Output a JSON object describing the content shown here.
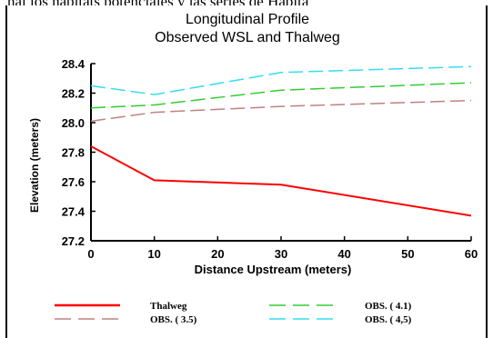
{
  "top_caption": "nal los hábitats potenciales y las series de Hábita",
  "chart_data": {
    "type": "line",
    "title": "Longitudinal Profile",
    "subtitle": "Observed WSL and Thalweg",
    "xlabel": "Distance Upstream (meters)",
    "ylabel": "Elevation (meters)",
    "xlim": [
      0,
      60
    ],
    "ylim": [
      27.2,
      28.4
    ],
    "x_ticks": [
      0,
      10,
      20,
      30,
      40,
      50,
      60
    ],
    "y_ticks": [
      27.2,
      27.4,
      27.6,
      27.8,
      28.0,
      28.2,
      28.4
    ],
    "grid": false,
    "legend_position": "bottom",
    "series": [
      {
        "name": "Thalweg",
        "color": "#ff0000",
        "dash": "solid",
        "x": [
          0,
          10,
          30,
          60
        ],
        "values": [
          27.84,
          27.61,
          27.58,
          27.37
        ]
      },
      {
        "name": "OBS. ( 3.5)",
        "color": "#c08080",
        "dash": "dashed",
        "x": [
          0,
          10,
          30,
          60
        ],
        "values": [
          28.01,
          28.07,
          28.11,
          28.15
        ]
      },
      {
        "name": "OBS. ( 4.1)",
        "color": "#33cc33",
        "dash": "dashed",
        "x": [
          0,
          10,
          30,
          60
        ],
        "values": [
          28.1,
          28.12,
          28.22,
          28.27
        ]
      },
      {
        "name": "OBS. ( 4,5)",
        "color": "#33ddee",
        "dash": "dashed",
        "x": [
          0,
          10,
          30,
          60
        ],
        "values": [
          28.25,
          28.19,
          28.34,
          28.38
        ]
      }
    ],
    "legend": [
      {
        "label": "Thalweg",
        "series_index": 0
      },
      {
        "label": "OBS. ( 3.5)",
        "series_index": 1
      },
      {
        "label": "OBS. ( 4.1)",
        "series_index": 2
      },
      {
        "label": "OBS. ( 4,5)",
        "series_index": 3
      }
    ]
  }
}
